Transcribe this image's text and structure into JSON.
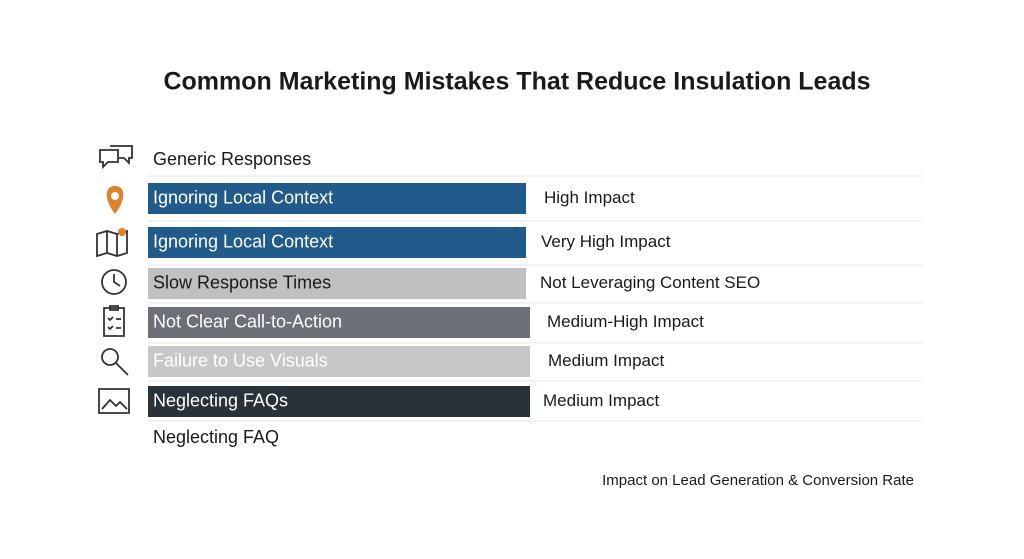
{
  "title": "Common Marketing Mistakes That Reduce Insulation Leads",
  "top_label": "Generic Responses",
  "rows": [
    {
      "label": "Ignoring Local Context",
      "impact": "High Impact",
      "bar_color": "#215b8b",
      "text_color": "#ffffff"
    },
    {
      "label": "Ignoring Local Context",
      "impact": "Very High Impact",
      "bar_color": "#215b8b",
      "text_color": "#ffffff"
    },
    {
      "label": "Slow Response Times",
      "impact": "Not Leveraging Content SEO",
      "bar_color": "#bfc0c2",
      "text_color": "#1a1a1a"
    },
    {
      "label": "Not Clear Call-to-Action",
      "impact": "Medium-High Impact",
      "bar_color": "#6d7177",
      "text_color": "#ffffff"
    },
    {
      "label": "Failure to Use Visuals",
      "impact": "Medium Impact",
      "bar_color": "#c6c7c9",
      "text_color": "#ffffff"
    },
    {
      "label": "Neglecting FAQs",
      "impact": "Medium Impact",
      "bar_color": "#29313b",
      "text_color": "#ffffff"
    }
  ],
  "bottom_label": "Neglecting FAQ",
  "footer": "Impact on Lead Generation & Conversion Rate"
}
